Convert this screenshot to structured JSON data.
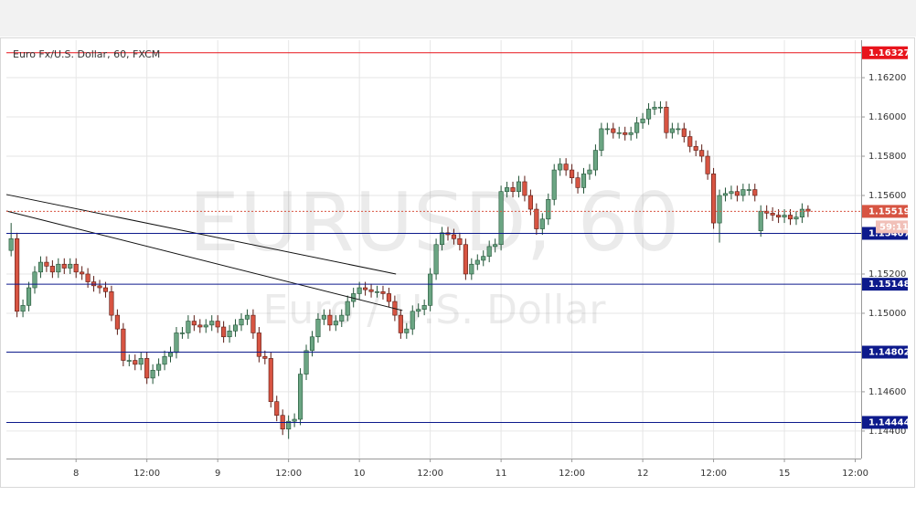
{
  "chart_data": {
    "type": "candlestick",
    "title": "Euro Fx/U.S. Dollar, 60, FXCM",
    "watermark": "EURUSD, 60",
    "watermark_subtitle": "Euro / U.S. Dollar",
    "up_color": "#6ba583",
    "down_color": "#d75442",
    "open": [
      1.1532,
      1.1538,
      1.1501,
      1.1504,
      1.1513,
      1.1521,
      1.1526,
      1.1524,
      1.1521,
      1.1525,
      1.1523,
      1.1525,
      1.1521,
      1.152,
      1.1516,
      1.1514,
      1.1513,
      1.1511,
      1.1499,
      1.1492,
      1.1476,
      1.1476,
      1.1474,
      1.1477,
      1.1467,
      1.1471,
      1.1474,
      1.1478,
      1.148,
      1.149,
      1.149,
      1.1496,
      1.1494,
      1.1493,
      1.1494,
      1.1496,
      1.1493,
      1.1488,
      1.1491,
      1.1494,
      1.1497,
      1.1499,
      1.149,
      1.1478,
      1.1477,
      1.1455,
      1.1448,
      1.1441,
      1.1445,
      1.1446,
      1.1469,
      1.1481,
      1.1488,
      1.1497,
      1.1499,
      1.1494,
      1.1496,
      1.1499,
      1.1506,
      1.151,
      1.1513,
      1.1512,
      1.1511,
      1.1511,
      1.151,
      1.1506,
      1.1499,
      1.149,
      1.1492,
      1.1501,
      1.1502,
      1.1504,
      1.152,
      1.1535,
      1.1541,
      1.154,
      1.1538,
      1.1535,
      1.152,
      1.1525,
      1.1527,
      1.1529,
      1.1534,
      1.1535,
      1.1562,
      1.1564,
      1.1562,
      1.1567,
      1.156,
      1.1553,
      1.1543,
      1.1548,
      1.1558,
      1.1573,
      1.1576,
      1.1573,
      1.1569,
      1.1564,
      1.1571,
      1.1573,
      1.1583,
      1.1594,
      1.1594,
      1.1592,
      1.1592,
      1.1591,
      1.1592,
      1.1597,
      1.1599,
      1.1604,
      1.1605,
      1.1605,
      1.1592,
      1.1594,
      1.1594,
      1.159,
      1.1585,
      1.1583,
      1.158,
      1.1571,
      1.1546,
      1.156,
      1.1561,
      1.1562,
      1.156,
      1.1563,
      1.1563,
      1.1542,
      1.1552,
      1.1551,
      1.155,
      1.1549,
      1.155,
      1.1548,
      1.1549,
      1.1553
    ],
    "high": [
      1.1546,
      1.1541,
      1.1507,
      1.1516,
      1.1524,
      1.1529,
      1.1529,
      1.1527,
      1.1528,
      1.1528,
      1.1528,
      1.1528,
      1.1524,
      1.1523,
      1.1519,
      1.1517,
      1.1516,
      1.1514,
      1.1502,
      1.1495,
      1.1479,
      1.1479,
      1.148,
      1.148,
      1.1474,
      1.1477,
      1.1481,
      1.1483,
      1.1493,
      1.1493,
      1.1499,
      1.1499,
      1.1497,
      1.1497,
      1.1499,
      1.1499,
      1.1496,
      1.1494,
      1.1497,
      1.15,
      1.1502,
      1.1502,
      1.1493,
      1.1481,
      1.148,
      1.1458,
      1.1451,
      1.1448,
      1.1449,
      1.1472,
      1.1484,
      1.1491,
      1.15,
      1.1502,
      1.1502,
      1.1499,
      1.1502,
      1.1509,
      1.1513,
      1.1516,
      1.1516,
      1.1515,
      1.1514,
      1.1514,
      1.1513,
      1.1509,
      1.1502,
      1.1495,
      1.1504,
      1.1505,
      1.1507,
      1.1523,
      1.1538,
      1.1544,
      1.1544,
      1.1543,
      1.1541,
      1.1538,
      1.1528,
      1.153,
      1.1532,
      1.1537,
      1.1538,
      1.1565,
      1.1567,
      1.1567,
      1.157,
      1.157,
      1.1563,
      1.1556,
      1.1551,
      1.1561,
      1.1576,
      1.1579,
      1.1579,
      1.1576,
      1.1572,
      1.1574,
      1.1576,
      1.1586,
      1.1597,
      1.1597,
      1.1597,
      1.1595,
      1.1595,
      1.1595,
      1.16,
      1.1602,
      1.1607,
      1.1608,
      1.1608,
      1.1608,
      1.1597,
      1.1597,
      1.1597,
      1.1593,
      1.1588,
      1.1586,
      1.1583,
      1.1574,
      1.1563,
      1.1564,
      1.1565,
      1.1565,
      1.1566,
      1.1566,
      1.1566,
      1.1555,
      1.1555,
      1.1554,
      1.1553,
      1.1553,
      1.1553,
      1.1552,
      1.1556,
      1.1555
    ],
    "low": [
      1.1529,
      1.1498,
      1.1498,
      1.1501,
      1.151,
      1.1518,
      1.1521,
      1.1518,
      1.1518,
      1.152,
      1.152,
      1.1518,
      1.1517,
      1.1513,
      1.1511,
      1.151,
      1.1508,
      1.1496,
      1.1489,
      1.1473,
      1.1473,
      1.1471,
      1.1471,
      1.1464,
      1.1464,
      1.1468,
      1.1471,
      1.1475,
      1.1477,
      1.1487,
      1.1487,
      1.1491,
      1.149,
      1.149,
      1.1491,
      1.149,
      1.1485,
      1.1485,
      1.1488,
      1.1491,
      1.1494,
      1.1487,
      1.1475,
      1.1474,
      1.1452,
      1.1445,
      1.1438,
      1.1436,
      1.1442,
      1.1443,
      1.1466,
      1.1478,
      1.1485,
      1.1494,
      1.1491,
      1.1491,
      1.1493,
      1.1496,
      1.1503,
      1.1507,
      1.1509,
      1.1508,
      1.1508,
      1.1507,
      1.1503,
      1.1496,
      1.1487,
      1.1487,
      1.1489,
      1.1498,
      1.1499,
      1.1501,
      1.1517,
      1.1532,
      1.1537,
      1.1535,
      1.1532,
      1.1517,
      1.1517,
      1.1522,
      1.1524,
      1.1526,
      1.1531,
      1.1532,
      1.1559,
      1.1559,
      1.1559,
      1.1557,
      1.155,
      1.154,
      1.154,
      1.1545,
      1.1555,
      1.157,
      1.157,
      1.1566,
      1.1561,
      1.1561,
      1.1568,
      1.157,
      1.158,
      1.1591,
      1.1589,
      1.1589,
      1.1588,
      1.1588,
      1.1589,
      1.1594,
      1.1596,
      1.1601,
      1.1602,
      1.1589,
      1.1589,
      1.1591,
      1.1587,
      1.1582,
      1.158,
      1.1577,
      1.1568,
      1.1543,
      1.1536,
      1.1557,
      1.1558,
      1.1557,
      1.1557,
      1.156,
      1.1557,
      1.1539,
      1.1548,
      1.1547,
      1.1546,
      1.1546,
      1.1545,
      1.1545,
      1.1546,
      1.1549
    ],
    "close": [
      1.1538,
      1.1501,
      1.1504,
      1.1513,
      1.1521,
      1.1526,
      1.1524,
      1.1521,
      1.1525,
      1.1523,
      1.1525,
      1.1521,
      1.152,
      1.1516,
      1.1514,
      1.1513,
      1.1511,
      1.1499,
      1.1492,
      1.1476,
      1.1476,
      1.1474,
      1.1477,
      1.1467,
      1.1471,
      1.1474,
      1.1478,
      1.148,
      1.149,
      1.149,
      1.1496,
      1.1494,
      1.1493,
      1.1494,
      1.1496,
      1.1493,
      1.1488,
      1.1491,
      1.1494,
      1.1497,
      1.1499,
      1.149,
      1.1478,
      1.1477,
      1.1455,
      1.1448,
      1.1441,
      1.1445,
      1.1446,
      1.1469,
      1.1481,
      1.1488,
      1.1497,
      1.1499,
      1.1494,
      1.1496,
      1.1499,
      1.1506,
      1.151,
      1.1513,
      1.1512,
      1.1511,
      1.1511,
      1.151,
      1.1506,
      1.1499,
      1.149,
      1.1492,
      1.1501,
      1.1502,
      1.1504,
      1.152,
      1.1535,
      1.1541,
      1.154,
      1.1538,
      1.1535,
      1.152,
      1.1525,
      1.1527,
      1.1529,
      1.1534,
      1.1535,
      1.1562,
      1.1564,
      1.1562,
      1.1567,
      1.156,
      1.1553,
      1.1543,
      1.1548,
      1.1558,
      1.1573,
      1.1576,
      1.1573,
      1.1569,
      1.1564,
      1.1571,
      1.1573,
      1.1583,
      1.1594,
      1.1594,
      1.1592,
      1.1592,
      1.1591,
      1.1592,
      1.1597,
      1.1599,
      1.1604,
      1.1605,
      1.1605,
      1.1592,
      1.1594,
      1.1594,
      1.159,
      1.1585,
      1.1583,
      1.158,
      1.1571,
      1.1546,
      1.156,
      1.1561,
      1.1562,
      1.156,
      1.1563,
      1.1563,
      1.156,
      1.1552,
      1.1551,
      1.155,
      1.1549,
      1.155,
      1.1548,
      1.1549,
      1.1553,
      1.1552
    ],
    "xlim": [
      -0.8,
      144
    ],
    "xticks": [
      {
        "value": 11,
        "label": "8"
      },
      {
        "value": 23,
        "label": "12:00"
      },
      {
        "value": 35,
        "label": "9"
      },
      {
        "value": 47,
        "label": "12:00"
      },
      {
        "value": 59,
        "label": "10"
      },
      {
        "value": 71,
        "label": "12:00"
      },
      {
        "value": 83,
        "label": "11"
      },
      {
        "value": 95,
        "label": "12:00"
      },
      {
        "value": 107,
        "label": "12"
      },
      {
        "value": 119,
        "label": "12:00"
      },
      {
        "value": 131,
        "label": "15"
      },
      {
        "value": 143,
        "label": "12:00"
      }
    ],
    "ylim": [
      1.1426,
      1.16391
    ],
    "yticks": [
      {
        "value": 1.144,
        "label": "1.14400"
      },
      {
        "value": 1.146,
        "label": "1.14600"
      },
      {
        "value": 1.15,
        "label": "1.15000"
      },
      {
        "value": 1.152,
        "label": "1.15200"
      },
      {
        "value": 1.156,
        "label": "1.15600"
      },
      {
        "value": 1.158,
        "label": "1.15800"
      },
      {
        "value": 1.16,
        "label": "1.16000"
      },
      {
        "value": 1.162,
        "label": "1.16200"
      }
    ],
    "grid": true,
    "levels": [
      {
        "value": 1.16327,
        "color": "#e8141c"
      },
      {
        "value": 1.15407,
        "color": "#0d1a8c"
      },
      {
        "value": 1.15148,
        "color": "#0d1a8c"
      },
      {
        "value": 1.14802,
        "color": "#0d1a8c"
      },
      {
        "value": 1.14444,
        "color": "#0d1a8c"
      }
    ],
    "last_price": 1.15519,
    "last_price_color": "#d75442",
    "countdown": "59:11",
    "trendlines": [
      {
        "x": [
          -0.8,
          65.2
        ],
        "y": [
          1.15605,
          1.152
        ]
      },
      {
        "x": [
          -0.8,
          66.3
        ],
        "y": [
          1.15521,
          1.15014
        ]
      }
    ]
  }
}
